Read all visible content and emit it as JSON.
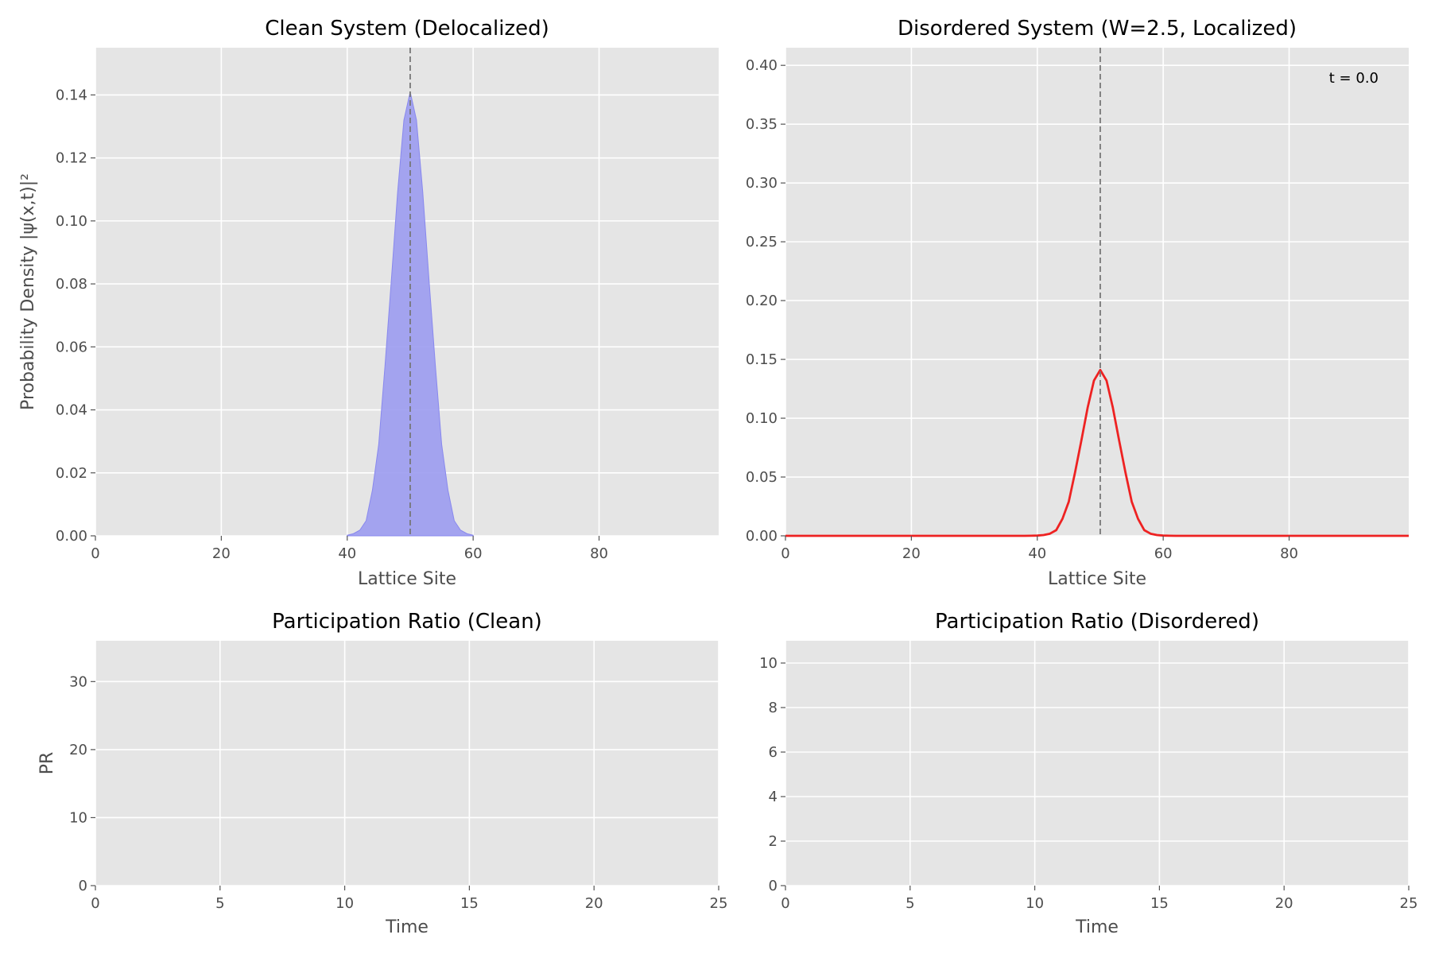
{
  "chart_data": [
    {
      "type": "area",
      "title": "Clean System (Delocalized)",
      "xlabel": "Lattice Site",
      "ylabel": "Probability Density |ψ(x,t)|²",
      "xlim": [
        0,
        99
      ],
      "ylim": [
        0,
        0.155
      ],
      "xticks": [
        "0",
        "20",
        "40",
        "60",
        "80"
      ],
      "yticks": [
        "0.00",
        "0.02",
        "0.04",
        "0.06",
        "0.08",
        "0.10",
        "0.12",
        "0.14"
      ],
      "grid": true,
      "fill_color": "#9b9bef",
      "edge_color": "#8888ee",
      "marker_line_x": 50,
      "series": [
        {
          "x": [
            40,
            41,
            42,
            43,
            44,
            45,
            46,
            47,
            48,
            49,
            50,
            51,
            52,
            53,
            54,
            55,
            56,
            57,
            58,
            59,
            60
          ],
          "y": [
            0.0002,
            0.0007,
            0.0018,
            0.0048,
            0.0145,
            0.029,
            0.054,
            0.081,
            0.109,
            0.132,
            0.141,
            0.132,
            0.109,
            0.081,
            0.054,
            0.029,
            0.0145,
            0.0048,
            0.0018,
            0.0007,
            0.0002
          ]
        }
      ]
    },
    {
      "type": "line",
      "title": "Disordered System (W=2.5, Localized)",
      "xlabel": "Lattice Site",
      "ylabel": "",
      "xlim": [
        0,
        99
      ],
      "ylim": [
        0,
        0.415
      ],
      "xticks": [
        "0",
        "20",
        "40",
        "60",
        "80"
      ],
      "yticks": [
        "0.00",
        "0.05",
        "0.10",
        "0.15",
        "0.20",
        "0.25",
        "0.30",
        "0.35",
        "0.40"
      ],
      "grid": true,
      "line_color": "#ee2222",
      "marker_line_x": 50,
      "annotation": "t = 0.0",
      "series": [
        {
          "x": [
            0,
            38,
            39,
            40,
            41,
            42,
            43,
            44,
            45,
            46,
            47,
            48,
            49,
            50,
            51,
            52,
            53,
            54,
            55,
            56,
            57,
            58,
            59,
            60,
            61,
            62,
            99
          ],
          "y": [
            0,
            0,
            0.0001,
            0.0002,
            0.0007,
            0.0018,
            0.0048,
            0.0145,
            0.029,
            0.054,
            0.081,
            0.109,
            0.132,
            0.141,
            0.132,
            0.109,
            0.081,
            0.054,
            0.029,
            0.0145,
            0.0048,
            0.0018,
            0.0007,
            0.0002,
            0.0001,
            0,
            0
          ]
        }
      ]
    },
    {
      "type": "line",
      "title": "Participation Ratio (Clean)",
      "xlabel": "Time",
      "ylabel": "PR",
      "xlim": [
        0,
        25
      ],
      "ylim": [
        0,
        36
      ],
      "xticks": [
        "0",
        "5",
        "10",
        "15",
        "20",
        "25"
      ],
      "yticks": [
        "0",
        "10",
        "20",
        "30"
      ],
      "grid": true,
      "series": []
    },
    {
      "type": "line",
      "title": "Participation Ratio (Disordered)",
      "xlabel": "Time",
      "ylabel": "",
      "xlim": [
        0,
        25
      ],
      "ylim": [
        0,
        11
      ],
      "xticks": [
        "0",
        "5",
        "10",
        "15",
        "20",
        "25"
      ],
      "yticks": [
        "0",
        "2",
        "4",
        "6",
        "8",
        "10"
      ],
      "grid": true,
      "series": []
    }
  ]
}
